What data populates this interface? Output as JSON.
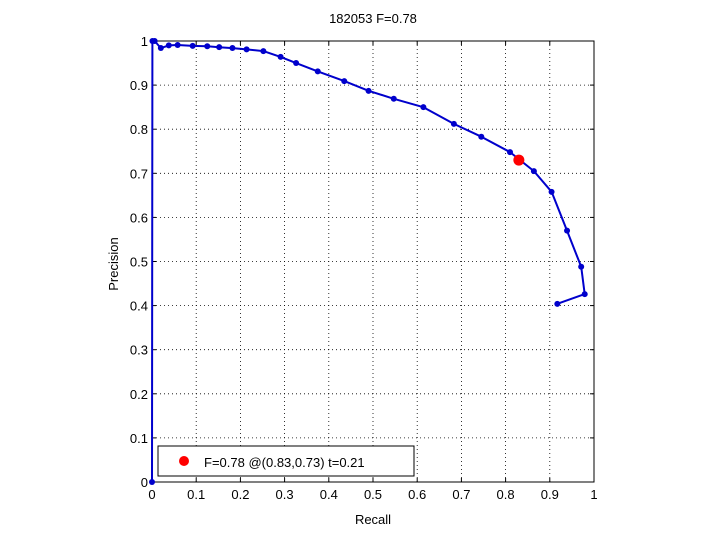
{
  "chart_data": {
    "type": "line",
    "title": "182053 F=0.78",
    "xlabel": "Recall",
    "ylabel": "Precision",
    "xlim": [
      0,
      1
    ],
    "ylim": [
      0,
      1
    ],
    "xticks": [
      "0",
      "0.1",
      "0.2",
      "0.3",
      "0.4",
      "0.5",
      "0.6",
      "0.7",
      "0.8",
      "0.9",
      "1"
    ],
    "yticks": [
      "0",
      "0.1",
      "0.2",
      "0.3",
      "0.4",
      "0.5",
      "0.6",
      "0.7",
      "0.8",
      "0.9",
      "1"
    ],
    "grid": true,
    "series": [
      {
        "color": "#0000cc",
        "points": [
          [
            0.0,
            0.0
          ],
          [
            0.001,
            1.0
          ],
          [
            0.006,
            1.0
          ],
          [
            0.02,
            0.984
          ],
          [
            0.038,
            0.99
          ],
          [
            0.058,
            0.991
          ],
          [
            0.092,
            0.989
          ],
          [
            0.125,
            0.988
          ],
          [
            0.152,
            0.986
          ],
          [
            0.182,
            0.984
          ],
          [
            0.214,
            0.981
          ],
          [
            0.252,
            0.977
          ],
          [
            0.291,
            0.964
          ],
          [
            0.326,
            0.95
          ],
          [
            0.375,
            0.931
          ],
          [
            0.435,
            0.909
          ],
          [
            0.49,
            0.887
          ],
          [
            0.547,
            0.869
          ],
          [
            0.614,
            0.85
          ],
          [
            0.683,
            0.812
          ],
          [
            0.745,
            0.783
          ],
          [
            0.81,
            0.748
          ],
          [
            0.864,
            0.705
          ],
          [
            0.904,
            0.658
          ],
          [
            0.939,
            0.57
          ],
          [
            0.971,
            0.488
          ],
          [
            0.979,
            0.426
          ],
          [
            0.917,
            0.404
          ]
        ]
      }
    ],
    "highlight": {
      "x": 0.83,
      "y": 0.73,
      "color": "#ff0000"
    },
    "legend": {
      "position": "bottom-left",
      "entries": [
        {
          "label": "F=0.78 @(0.83,0.73) t=0.21",
          "color": "#ff0000"
        }
      ]
    }
  }
}
